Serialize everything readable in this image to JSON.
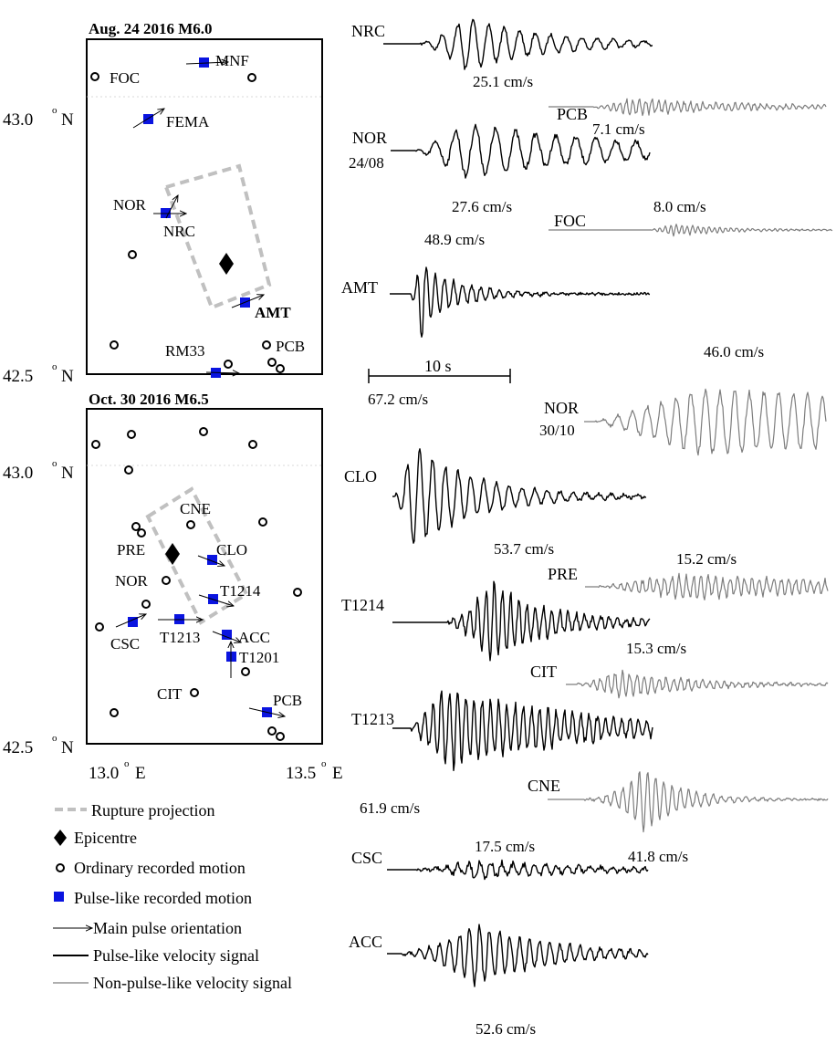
{
  "map_top": {
    "title": "Aug. 24 2016 M6.0",
    "lat_labels": [
      {
        "lat": "43.0",
        "unit": "N"
      },
      {
        "lat": "42.5",
        "unit": "N"
      }
    ],
    "stations": [
      {
        "id": "FOC",
        "label": "FOC",
        "type": "ordinary"
      },
      {
        "id": "MNF",
        "label": "MNF",
        "type": "pulse"
      },
      {
        "id": "MNF-o",
        "label": "",
        "type": "ordinary"
      },
      {
        "id": "FEMA",
        "label": "FEMA",
        "type": "pulse"
      },
      {
        "id": "NOR",
        "label": "NOR",
        "type": "pulse"
      },
      {
        "id": "NRC",
        "label": "NRC",
        "type": "pulse"
      },
      {
        "id": "o1",
        "label": "",
        "type": "ordinary"
      },
      {
        "id": "AMT",
        "label": "AMT",
        "type": "pulse"
      },
      {
        "id": "o2",
        "label": "",
        "type": "ordinary"
      },
      {
        "id": "RM33",
        "label": "RM33",
        "type": "pulse"
      },
      {
        "id": "o3",
        "label": "",
        "type": "ordinary"
      },
      {
        "id": "PCB",
        "label": "PCB",
        "type": "ordinary"
      },
      {
        "id": "o4",
        "label": "",
        "type": "ordinary"
      },
      {
        "id": "o5",
        "label": "",
        "type": "ordinary"
      }
    ]
  },
  "map_bottom": {
    "title": "Oct. 30 2016 M6.5",
    "lat_labels": [
      {
        "lat": "43.0",
        "unit": "N"
      },
      {
        "lat": "42.5",
        "unit": "N"
      }
    ],
    "lon_labels": [
      {
        "lon": "13.0",
        "unit": "E"
      },
      {
        "lon": "13.5",
        "unit": "E"
      }
    ],
    "stations": [
      {
        "id": "CNE",
        "label": "CNE",
        "type": "ordinary"
      },
      {
        "id": "PRE",
        "label": "PRE",
        "type": "ordinary"
      },
      {
        "id": "CLO",
        "label": "CLO",
        "type": "pulse"
      },
      {
        "id": "NOR",
        "label": "NOR",
        "type": "ordinary"
      },
      {
        "id": "T1214",
        "label": "T1214",
        "type": "pulse"
      },
      {
        "id": "CSC",
        "label": "CSC",
        "type": "pulse"
      },
      {
        "id": "T1213",
        "label": "T1213",
        "type": "pulse"
      },
      {
        "id": "ACC",
        "label": "ACC",
        "type": "pulse"
      },
      {
        "id": "T1201",
        "label": "T1201",
        "type": "pulse"
      },
      {
        "id": "CIT",
        "label": "CIT",
        "type": "ordinary"
      },
      {
        "id": "PCB",
        "label": "PCB",
        "type": "pulse"
      }
    ]
  },
  "legend": [
    {
      "symbol": "dashed-rect",
      "text": "Rupture projection"
    },
    {
      "symbol": "diamond",
      "text": "Epicentre"
    },
    {
      "symbol": "circle",
      "text": "Ordinary recorded motion"
    },
    {
      "symbol": "square",
      "text": "Pulse-like recorded motion"
    },
    {
      "symbol": "arrow",
      "text": "Main pulse orientation"
    },
    {
      "symbol": "black-line",
      "text": "Pulse-like velocity signal"
    },
    {
      "symbol": "gray-line",
      "text": "Non-pulse-like velocity signal"
    }
  ],
  "scale_bar": {
    "text": "10 s"
  },
  "colors": {
    "pulse": "#0a14e0",
    "non_pulse": "#7d7d7d",
    "rupture": "#c0c0c0"
  },
  "traces": [
    {
      "id": "NRC",
      "label": "NRC",
      "sublabel": "",
      "peak": "25.1 cm/s",
      "pulse": true
    },
    {
      "id": "PCB",
      "label": "PCB",
      "sublabel": "",
      "peak": "7.1 cm/s",
      "pulse": false
    },
    {
      "id": "NOR24",
      "label": "NOR",
      "sublabel": "24/08",
      "peak": "27.6 cm/s",
      "pulse": true
    },
    {
      "id": "FOC",
      "label": "FOC",
      "sublabel": "",
      "peak": "8.0 cm/s",
      "pulse": false
    },
    {
      "id": "AMT",
      "label": "AMT",
      "sublabel": "",
      "peak": "48.9 cm/s",
      "pulse": true
    },
    {
      "id": "NOR30",
      "label": "NOR",
      "sublabel": "30/10",
      "peak": "46.0 cm/s",
      "pulse": false
    },
    {
      "id": "CLO",
      "label": "CLO",
      "sublabel": "",
      "peak": "67.2 cm/s",
      "pulse": true
    },
    {
      "id": "T1214",
      "label": "T1214",
      "sublabel": "",
      "peak": "53.7 cm/s",
      "pulse": true
    },
    {
      "id": "PRE",
      "label": "PRE",
      "sublabel": "",
      "peak": "15.2 cm/s",
      "pulse": false
    },
    {
      "id": "CIT",
      "label": "CIT",
      "sublabel": "",
      "peak": "15.3 cm/s",
      "pulse": false
    },
    {
      "id": "T1213",
      "label": "T1213",
      "sublabel": "",
      "peak": "61.9 cm/s",
      "pulse": true
    },
    {
      "id": "CNE",
      "label": "CNE",
      "sublabel": "",
      "peak": "41.8 cm/s",
      "pulse": false
    },
    {
      "id": "CSC",
      "label": "CSC",
      "sublabel": "",
      "peak": "17.5 cm/s",
      "pulse": true
    },
    {
      "id": "ACC",
      "label": "ACC",
      "sublabel": "",
      "peak": "52.6 cm/s",
      "pulse": true
    }
  ]
}
